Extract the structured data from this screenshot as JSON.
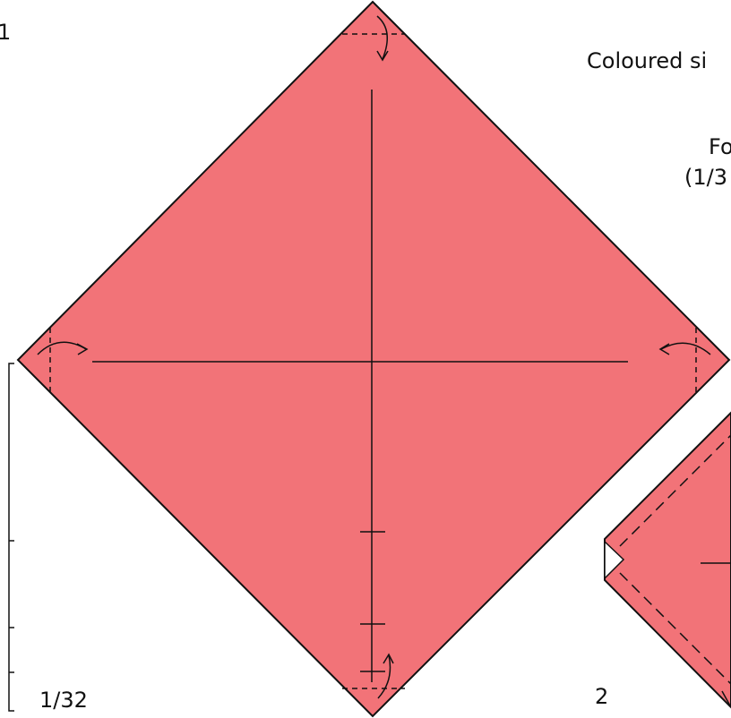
{
  "diagram": {
    "step_one": "1",
    "step_two": "2",
    "fraction_label": "1/32",
    "note_line_1": "Coloured si",
    "note_line_2": "Fo",
    "note_line_3": "(1/3"
  },
  "colors": {
    "paper": "#F27378",
    "line": "#111111",
    "white_side": "#ffffff"
  }
}
